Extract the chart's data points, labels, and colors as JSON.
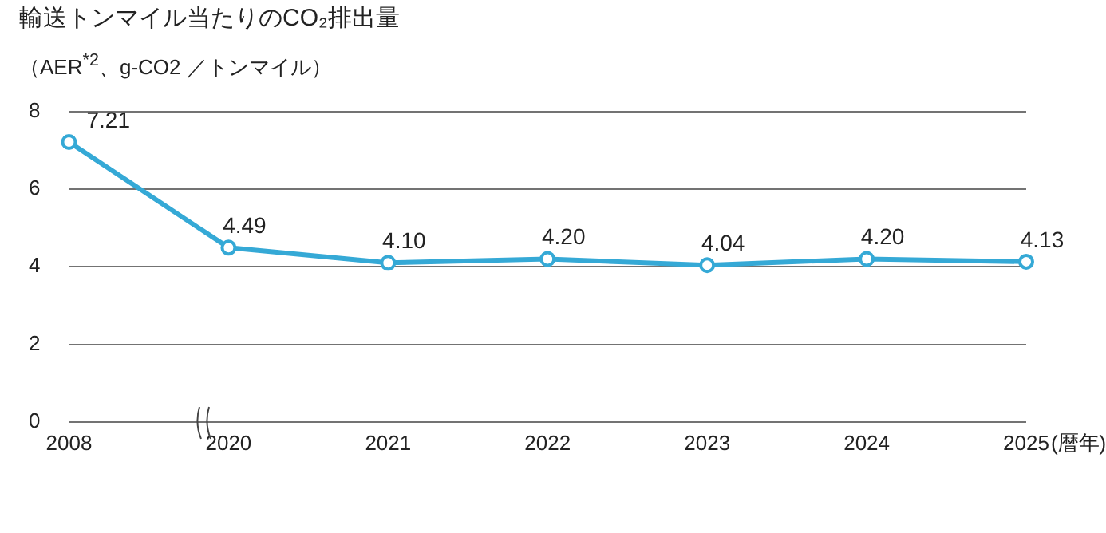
{
  "chart_data": {
    "type": "line",
    "title": "輸送トンマイル当たりのCO₂排出量",
    "ylabel": "（AER$^{*2}$、g-CO2 ／トンマイル）",
    "xlabel": "(暦年)",
    "categories": [
      "2008",
      "2020",
      "2021",
      "2022",
      "2023",
      "2024",
      "2025"
    ],
    "series": [
      {
        "color": "#35a9d6",
        "values": [
          7.21,
          4.49,
          4.1,
          4.2,
          4.04,
          4.2,
          4.13
        ],
        "value_labels": [
          "7.21",
          "4.49",
          "4.10",
          "4.20",
          "4.04",
          "4.20",
          "4.13"
        ]
      }
    ],
    "ylim": [
      0,
      8
    ],
    "yticks": [
      0,
      2,
      4,
      6,
      8
    ],
    "grid": "y",
    "legend": false,
    "marker": "circle",
    "line_style": "solid"
  }
}
